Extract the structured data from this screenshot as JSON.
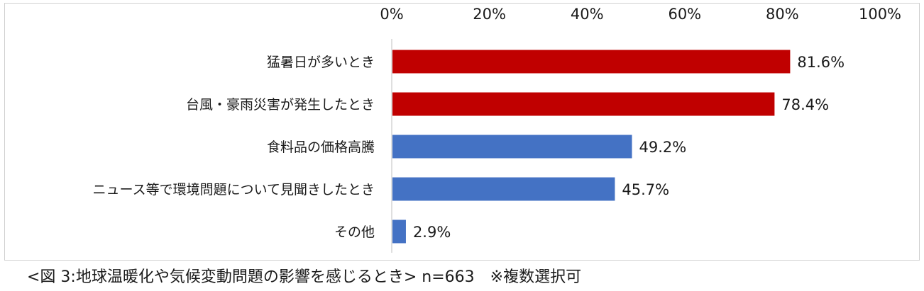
{
  "chart_data": {
    "type": "bar",
    "orientation": "horizontal",
    "categories": [
      "猛暑日が多いとき",
      "台風・豪雨災害が発生したとき",
      "食料品の価格高騰",
      "ニュース等で環境問題について見聞きしたとき",
      "その他"
    ],
    "values": [
      81.6,
      78.4,
      49.2,
      45.7,
      2.9
    ],
    "value_labels": [
      "81.6%",
      "78.4%",
      "49.2%",
      "45.7%",
      "2.9%"
    ],
    "bar_colors": [
      "#C00000",
      "#C00000",
      "#4472C4",
      "#4472C4",
      "#4472C4"
    ],
    "xlim": [
      0,
      100
    ],
    "x_ticks": [
      "0%",
      "20%",
      "40%",
      "60%",
      "80%",
      "100%"
    ],
    "x_axis_position": "top",
    "grid": false,
    "legend": "none"
  },
  "caption": {
    "text": "<図 3:地球温暖化や気候変動問題の影響を感じるとき> n=663",
    "note": "※複数選択可"
  }
}
